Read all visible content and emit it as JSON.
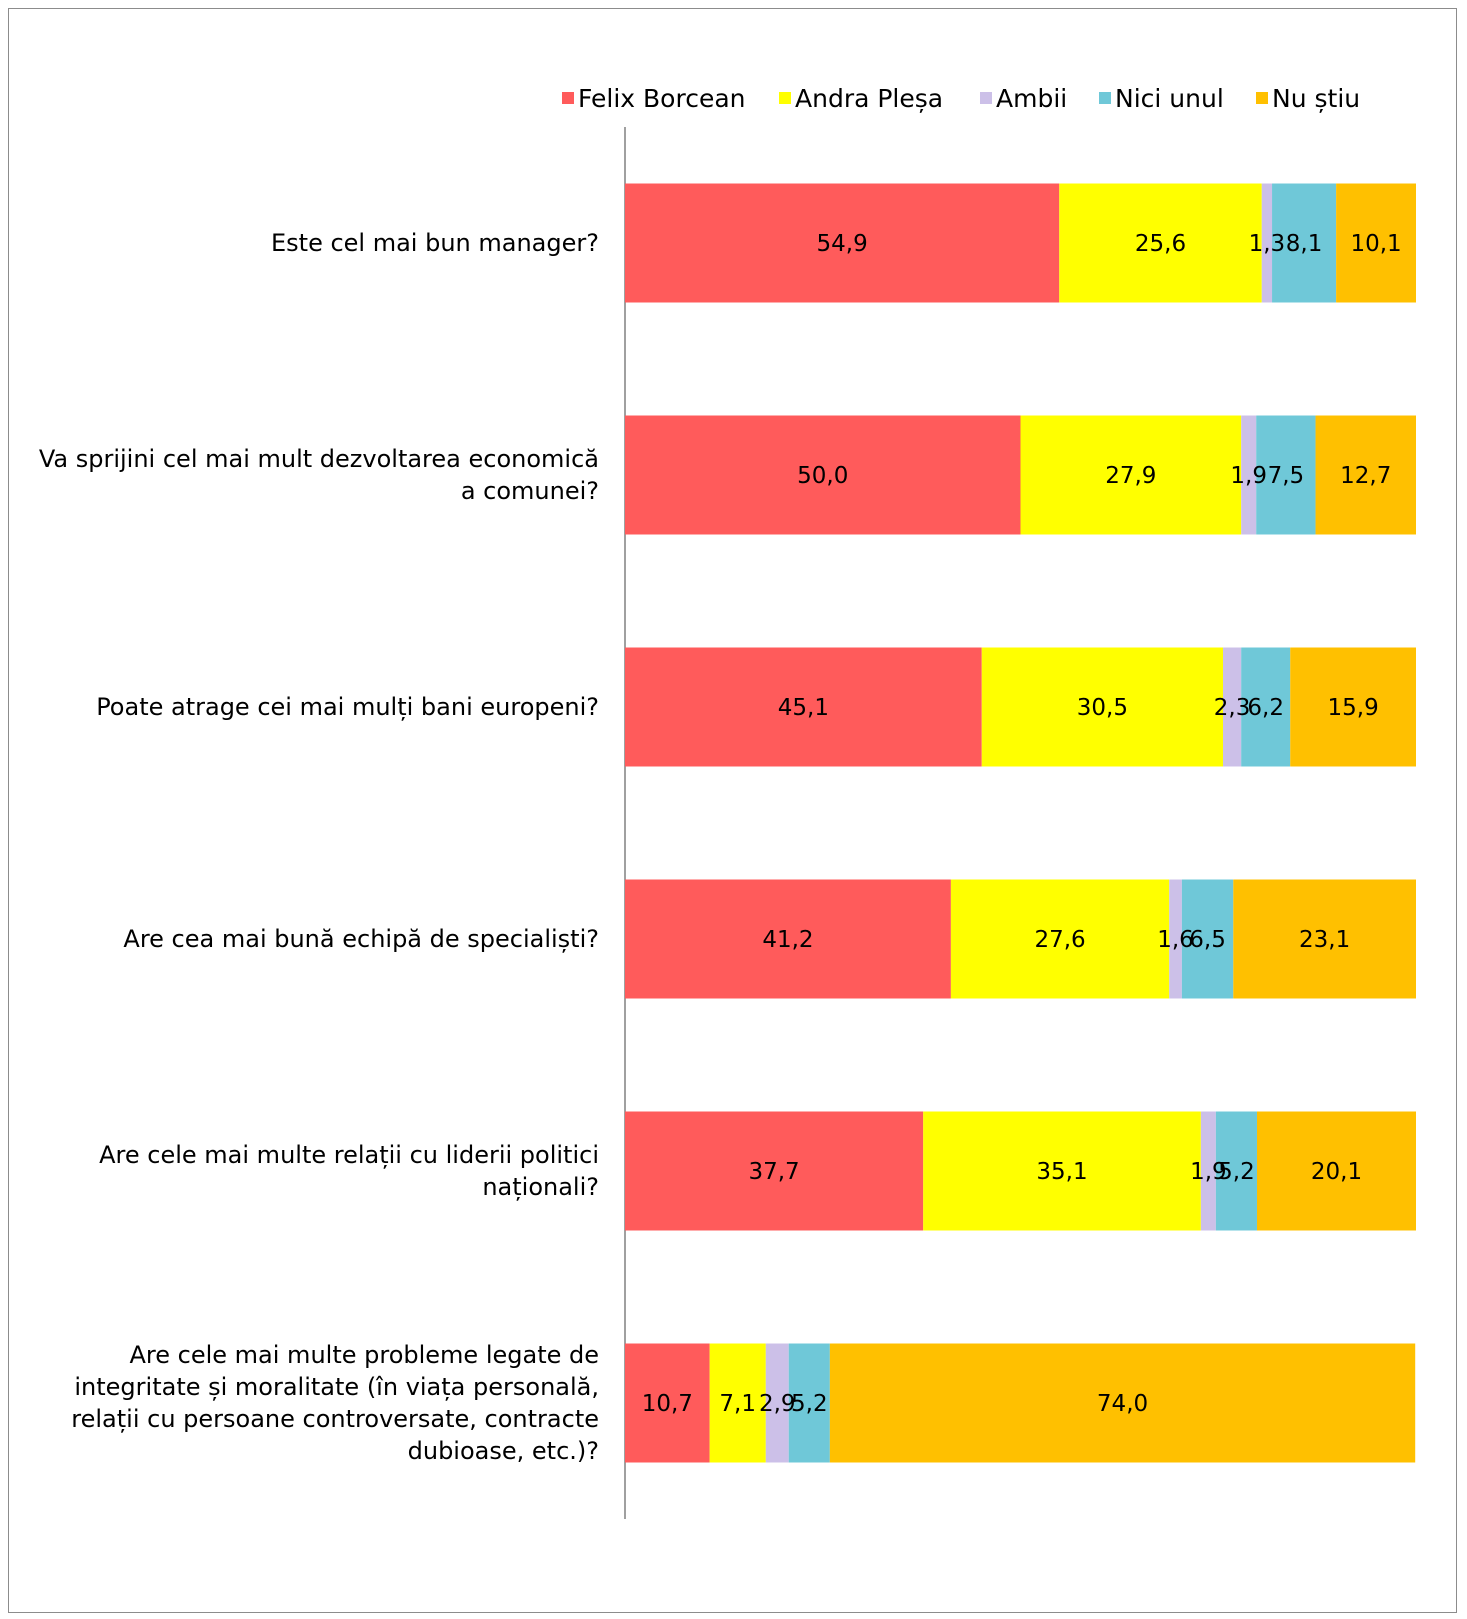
{
  "chart_data": {
    "type": "bar",
    "orientation": "horizontal",
    "stacked": true,
    "title": "",
    "xlabel": "",
    "ylabel": "",
    "xlim": [
      0,
      100
    ],
    "grid": false,
    "legend_position": "top-right",
    "categories": [
      "Este cel mai bun manager?",
      "Va sprijini cel mai mult dezvoltarea economică a comunei?",
      "Poate atrage cei mai mulți bani europeni?",
      "Are cea mai bună echipă de specialiști?",
      "Are cele mai multe relații cu liderii politici naționali?",
      "Are cele mai multe probleme legate de integritate și moralitate (în viața personală, relații cu persoane controversate, contracte dubioase, etc.)?"
    ],
    "category_lines": [
      [
        "Este cel mai bun manager?"
      ],
      [
        "Va sprijini cel mai mult dezvoltarea economică",
        "a comunei?"
      ],
      [
        "Poate atrage cei mai mulți bani europeni?"
      ],
      [
        "Are cea mai bună echipă de specialiști?"
      ],
      [
        "Are cele mai multe relații cu liderii politici",
        "naționali?"
      ],
      [
        "Are cele mai multe probleme legate de",
        "integritate și moralitate (în viața personală,",
        "relații cu persoane controversate, contracte",
        "dubioase, etc.)?"
      ]
    ],
    "series": [
      {
        "name": "Felix Borcean",
        "color": "#ff5b5b",
        "values": [
          54.9,
          50.0,
          45.1,
          41.2,
          37.7,
          10.7
        ],
        "labels": [
          "54,9",
          "50,0",
          "45,1",
          "41,2",
          "37,7",
          "10,7"
        ]
      },
      {
        "name": "Andra Pleșa",
        "color": "#ffff00",
        "values": [
          25.6,
          27.9,
          30.5,
          27.6,
          35.1,
          7.1
        ],
        "labels": [
          "25,6",
          "27,9",
          "30,5",
          "27,6",
          "35,1",
          "7,1"
        ]
      },
      {
        "name": "Ambii",
        "color": "#ccc0e8",
        "values": [
          1.3,
          1.9,
          2.3,
          1.6,
          1.9,
          2.9
        ],
        "labels": [
          "1,3",
          "1,9",
          "2,3",
          "1,6",
          "1,9",
          "2,9"
        ]
      },
      {
        "name": "Nici unul",
        "color": "#6fc8d8",
        "values": [
          8.1,
          7.5,
          6.2,
          6.5,
          5.2,
          5.2
        ],
        "labels": [
          "8,1",
          "7,5",
          "6,2",
          "6,5",
          "5,2",
          "5,2"
        ]
      },
      {
        "name": "Nu știu",
        "color": "#ffc000",
        "values": [
          10.1,
          12.7,
          15.9,
          23.1,
          20.1,
          74.0
        ],
        "labels": [
          "10,1",
          "12,7",
          "15,9",
          "23,1",
          "20,1",
          "74,0"
        ]
      }
    ]
  }
}
